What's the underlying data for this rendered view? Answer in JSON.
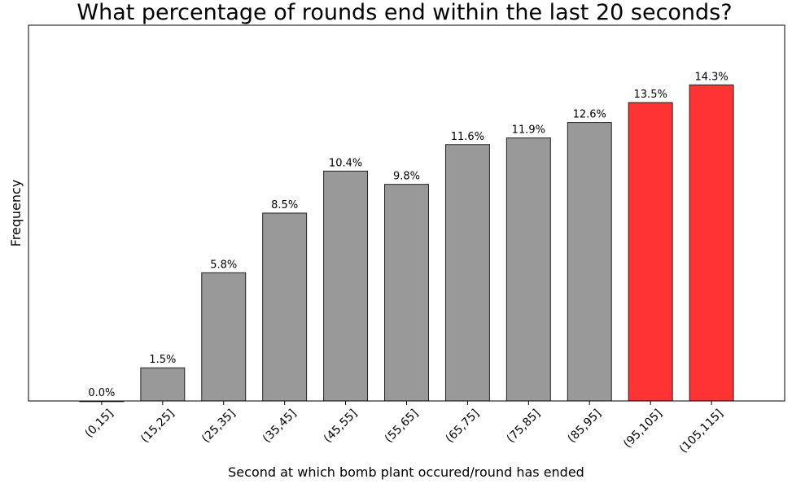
{
  "chart_data": {
    "type": "bar",
    "title": "What percentage of rounds end within the last 20 seconds?",
    "xlabel": "Second at which bomb plant occured/round has ended",
    "ylabel": "Frequency",
    "categories": [
      "(0,15]",
      "(15,25]",
      "(25,35]",
      "(35,45]",
      "(45,55]",
      "(55,65]",
      "(65,75]",
      "(75,85]",
      "(85,95]",
      "(95,105]",
      "(105,115]"
    ],
    "values": [
      0.0,
      1.5,
      5.8,
      8.5,
      10.4,
      9.8,
      11.6,
      11.9,
      12.6,
      13.5,
      14.3
    ],
    "labels": [
      "0.0%",
      "1.5%",
      "5.8%",
      "8.5%",
      "10.4%",
      "9.8%",
      "11.6%",
      "11.9%",
      "12.6%",
      "13.5%",
      "14.3%"
    ],
    "ylim": [
      0,
      17
    ],
    "y_ticks_shown": false,
    "grid": false,
    "colors": {
      "default": "#999999",
      "highlight": "#ff3333",
      "edge": "#222222"
    },
    "highlighted": [
      "(95,105]",
      "(105,115]"
    ]
  }
}
